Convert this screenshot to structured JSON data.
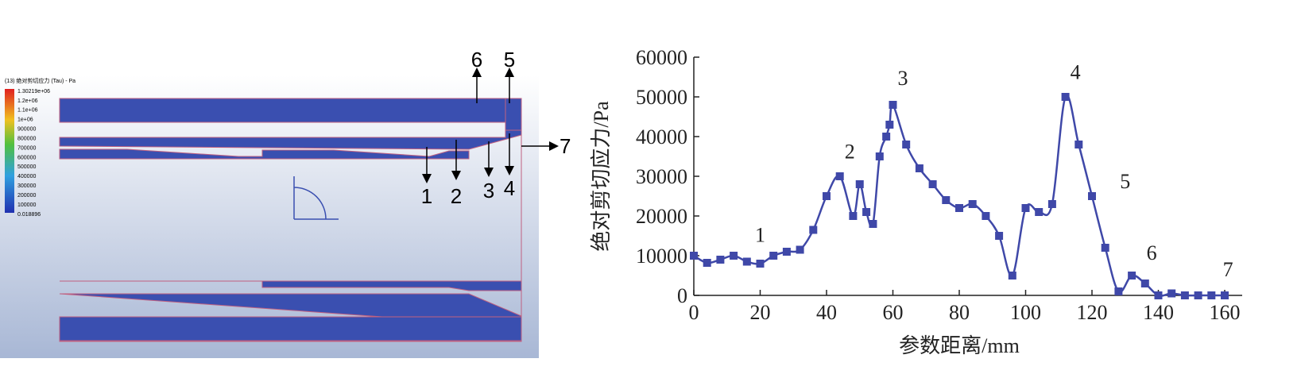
{
  "simulation": {
    "legend_title": "(13) 绝对剪切应力 (Tau) - Pa",
    "legend_labels": [
      "1.30219e+06",
      "1.2e+06",
      "1.1e+06",
      "1e+06",
      "900000",
      "800000",
      "700000",
      "600000",
      "500000",
      "400000",
      "300000",
      "200000",
      "100000",
      "0.018896"
    ],
    "labels": [
      "1",
      "2",
      "3",
      "4",
      "5",
      "6",
      "7"
    ]
  },
  "chart_data": {
    "type": "line",
    "xlabel": "参数距离/mm",
    "ylabel": "绝对剪切应力/Pa",
    "x": [
      0,
      4,
      8,
      12,
      16,
      20,
      24,
      28,
      32,
      36,
      40,
      44,
      48,
      50,
      52,
      54,
      56,
      58,
      59,
      60,
      64,
      68,
      72,
      76,
      80,
      84,
      88,
      92,
      96,
      100,
      104,
      108,
      112,
      116,
      120,
      124,
      128,
      132,
      136,
      140,
      144,
      148,
      152,
      156,
      160
    ],
    "series": [
      {
        "color": "#3f48a8",
        "values": [
          10000,
          8200,
          9000,
          10000,
          8500,
          8000,
          10000,
          11000,
          11500,
          16500,
          25000,
          30000,
          20000,
          28000,
          21000,
          18000,
          35000,
          40000,
          43000,
          48000,
          38000,
          32000,
          28000,
          24000,
          22000,
          23000,
          20000,
          15000,
          5000,
          22000,
          21000,
          23000,
          50000,
          38000,
          25000,
          12000,
          1000,
          5000,
          3000,
          0,
          500,
          0,
          0,
          0,
          0
        ]
      }
    ],
    "xlim": [
      0,
      160
    ],
    "ylim": [
      0,
      60000
    ],
    "xticks": [
      0,
      20,
      40,
      60,
      80,
      100,
      120,
      140,
      160
    ],
    "yticks": [
      0,
      10000,
      20000,
      30000,
      40000,
      50000,
      60000
    ],
    "annotations": [
      {
        "text": "1",
        "x": 20,
        "y": 13500
      },
      {
        "text": "2",
        "x": 47,
        "y": 34500
      },
      {
        "text": "3",
        "x": 63,
        "y": 53000
      },
      {
        "text": "4",
        "x": 115,
        "y": 54500
      },
      {
        "text": "5",
        "x": 130,
        "y": 27000
      },
      {
        "text": "6",
        "x": 138,
        "y": 9000
      },
      {
        "text": "7",
        "x": 161,
        "y": 4800
      }
    ]
  }
}
